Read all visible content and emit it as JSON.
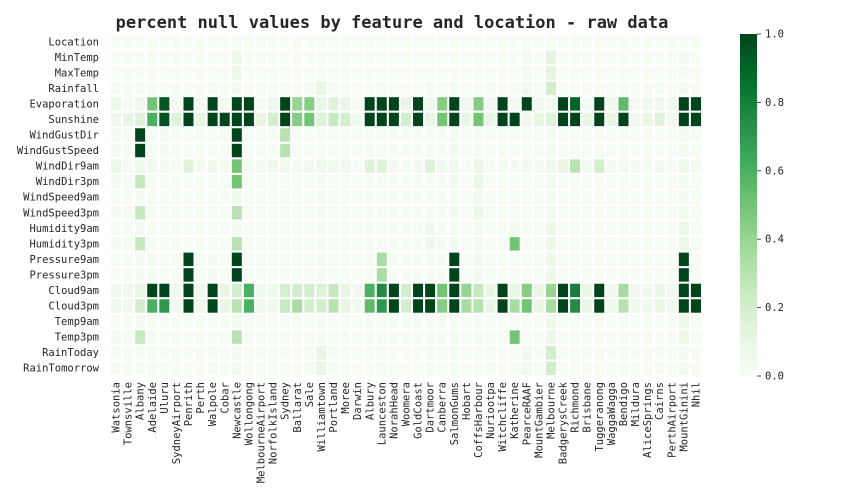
{
  "chart_data": {
    "type": "heatmap",
    "title": "percent null values by feature and location - raw data",
    "xlabel": "",
    "ylabel": "",
    "colormap": "Greens",
    "value_range": [
      0,
      1
    ],
    "colorbar_ticks": [
      "0.0",
      "0.2",
      "0.4",
      "0.6",
      "0.8",
      "1.0"
    ],
    "rows": [
      "Location",
      "MinTemp",
      "MaxTemp",
      "Rainfall",
      "Evaporation",
      "Sunshine",
      "WindGustDir",
      "WindGustSpeed",
      "WindDir9am",
      "WindDir3pm",
      "WindSpeed9am",
      "WindSpeed3pm",
      "Humidity9am",
      "Humidity3pm",
      "Pressure9am",
      "Pressure3pm",
      "Cloud9am",
      "Cloud3pm",
      "Temp9am",
      "Temp3pm",
      "RainToday",
      "RainTomorrow"
    ],
    "columns": [
      "Watsonia",
      "Townsville",
      "Albany",
      "Adelaide",
      "Uluru",
      "SydneyAirport",
      "Penrith",
      "Perth",
      "Walpole",
      "Cobar",
      "Newcastle",
      "Wollongong",
      "MelbourneAirport",
      "NorfolkIsland",
      "Sydney",
      "Ballarat",
      "Sale",
      "Williamtown",
      "Portland",
      "Moree",
      "Darwin",
      "Albury",
      "Launceston",
      "NorahHead",
      "Woomera",
      "GoldCoast",
      "Dartmoor",
      "Canberra",
      "SalmonGums",
      "Hobart",
      "CoffsHarbour",
      "Nuriootpa",
      "Witchcliffe",
      "Katherine",
      "PearceRAAF",
      "MountGambier",
      "Melbourne",
      "BadgerysCreek",
      "Richmond",
      "Brisbane",
      "Tuggeranong",
      "WaggaWagga",
      "Bendigo",
      "Mildura",
      "AliceSprings",
      "Cairns",
      "PerthAirport",
      "MountGinini",
      "Nhil"
    ],
    "values": [
      [
        0,
        0,
        0,
        0,
        0,
        0,
        0,
        0,
        0,
        0,
        0,
        0,
        0,
        0,
        0,
        0,
        0,
        0,
        0,
        0,
        0,
        0,
        0,
        0,
        0,
        0,
        0,
        0,
        0,
        0,
        0,
        0,
        0,
        0,
        0,
        0,
        0,
        0,
        0,
        0,
        0,
        0,
        0,
        0,
        0,
        0,
        0,
        0,
        0
      ],
      [
        0,
        0,
        0.01,
        0.01,
        0,
        0,
        0,
        0,
        0,
        0,
        0.07,
        0,
        0,
        0,
        0,
        0,
        0,
        0,
        0,
        0,
        0,
        0,
        0,
        0,
        0,
        0,
        0,
        0,
        0,
        0,
        0,
        0,
        0,
        0,
        0.03,
        0,
        0.12,
        0,
        0,
        0,
        0,
        0,
        0,
        0,
        0,
        0,
        0,
        0.02,
        0
      ],
      [
        0,
        0,
        0.01,
        0.01,
        0,
        0,
        0,
        0,
        0,
        0,
        0.07,
        0,
        0,
        0,
        0,
        0,
        0,
        0,
        0,
        0,
        0,
        0,
        0,
        0,
        0,
        0,
        0,
        0,
        0,
        0,
        0,
        0,
        0,
        0,
        0.03,
        0,
        0.12,
        0,
        0,
        0,
        0,
        0,
        0,
        0,
        0,
        0,
        0,
        0.02,
        0
      ],
      [
        0.02,
        0.01,
        0.02,
        0.02,
        0.01,
        0.01,
        0.01,
        0.01,
        0.02,
        0.01,
        0.03,
        0.01,
        0.01,
        0.01,
        0.01,
        0.01,
        0.02,
        0.1,
        0.02,
        0.01,
        0.01,
        0.01,
        0.02,
        0.01,
        0.01,
        0.01,
        0.02,
        0.01,
        0.02,
        0.01,
        0.01,
        0.02,
        0.01,
        0.01,
        0.05,
        0.01,
        0.2,
        0.01,
        0.01,
        0.01,
        0.01,
        0.01,
        0.02,
        0.01,
        0.01,
        0.02,
        0.01,
        0.03,
        0.01
      ],
      [
        0.06,
        0.02,
        0.05,
        0.5,
        0.95,
        0.02,
        1.0,
        0.02,
        1.0,
        0.02,
        1.0,
        1.0,
        0.02,
        0.06,
        1.0,
        0.4,
        0.45,
        0.1,
        0.15,
        0.1,
        0.02,
        1.0,
        1.0,
        1.0,
        0.1,
        1.0,
        0.05,
        0.45,
        1.0,
        0.05,
        0.45,
        0.05,
        1.0,
        0.02,
        1.0,
        0.05,
        0.05,
        1.0,
        0.9,
        0.02,
        1.0,
        0.05,
        0.55,
        0.02,
        0.05,
        0.05,
        0.05,
        1.0,
        1.0
      ],
      [
        0.06,
        0.1,
        0.15,
        0.6,
        0.95,
        0.15,
        1.0,
        0.1,
        1.0,
        1.0,
        1.0,
        1.0,
        0.1,
        0.2,
        1.0,
        0.45,
        0.5,
        0.15,
        0.25,
        0.2,
        0.05,
        1.0,
        1.0,
        1.0,
        0.2,
        1.0,
        0.1,
        0.5,
        1.0,
        0.1,
        0.5,
        0.1,
        1.0,
        1.0,
        0.05,
        0.1,
        0.15,
        1.0,
        1.0,
        0.1,
        1.0,
        0.1,
        1.0,
        0.05,
        0.1,
        0.15,
        0.05,
        1.0,
        1.0
      ],
      [
        0.02,
        0.01,
        1.0,
        0.01,
        0.02,
        0.01,
        0.01,
        0.01,
        0.01,
        0.01,
        1.0,
        0.01,
        0.01,
        0.01,
        0.3,
        0.01,
        0.01,
        0.01,
        0.01,
        0.01,
        0.01,
        0.01,
        0.01,
        0.01,
        0.01,
        0.02,
        0.01,
        0.02,
        0.03,
        0.01,
        0.02,
        0.01,
        0.01,
        0.01,
        0.01,
        0.01,
        0.03,
        0.01,
        0.01,
        0.01,
        0.01,
        0.01,
        0.01,
        0.01,
        0.01,
        0.01,
        0.01,
        0.03,
        0.01
      ],
      [
        0.02,
        0.01,
        1.0,
        0.01,
        0.02,
        0.01,
        0.01,
        0.01,
        0.01,
        0.01,
        1.0,
        0.01,
        0.01,
        0.01,
        0.3,
        0.01,
        0.01,
        0.01,
        0.01,
        0.01,
        0.01,
        0.01,
        0.01,
        0.01,
        0.01,
        0.02,
        0.01,
        0.02,
        0.03,
        0.01,
        0.02,
        0.01,
        0.01,
        0.01,
        0.01,
        0.01,
        0.03,
        0.01,
        0.01,
        0.01,
        0.01,
        0.01,
        0.01,
        0.01,
        0.01,
        0.01,
        0.01,
        0.03,
        0.01
      ],
      [
        0.08,
        0.02,
        0.05,
        0.04,
        0.03,
        0.02,
        0.15,
        0.03,
        0.05,
        0.03,
        0.5,
        0.03,
        0.02,
        0.05,
        0.04,
        0.03,
        0.04,
        0.05,
        0.04,
        0.05,
        0.02,
        0.15,
        0.15,
        0.03,
        0.02,
        0.03,
        0.15,
        0.05,
        0.05,
        0.02,
        0.08,
        0.02,
        0.03,
        0.02,
        0.04,
        0.02,
        0.05,
        0.1,
        0.3,
        0.04,
        0.2,
        0.02,
        0.04,
        0.02,
        0.02,
        0.04,
        0.02,
        0.06,
        0.03
      ],
      [
        0.02,
        0.01,
        0.25,
        0.01,
        0.01,
        0.01,
        0.01,
        0.01,
        0.01,
        0.01,
        0.5,
        0.01,
        0.01,
        0.01,
        0.01,
        0.01,
        0.01,
        0.02,
        0.01,
        0.01,
        0.01,
        0.02,
        0.02,
        0.01,
        0.01,
        0.02,
        0.01,
        0.02,
        0.03,
        0.01,
        0.08,
        0.01,
        0.01,
        0.01,
        0.01,
        0.01,
        0.03,
        0.01,
        0.01,
        0.01,
        0.01,
        0.01,
        0.01,
        0.01,
        0.01,
        0.01,
        0.01,
        0.04,
        0.01
      ],
      [
        0.01,
        0.01,
        0.02,
        0.01,
        0.01,
        0.01,
        0.01,
        0.01,
        0.01,
        0.01,
        0.05,
        0.01,
        0.01,
        0.01,
        0.01,
        0.01,
        0.01,
        0.02,
        0.01,
        0.01,
        0.01,
        0.01,
        0.01,
        0.01,
        0.01,
        0.01,
        0.01,
        0.02,
        0.02,
        0.01,
        0.05,
        0.01,
        0.01,
        0.01,
        0.01,
        0.01,
        0.02,
        0.01,
        0.01,
        0.01,
        0.01,
        0.01,
        0.01,
        0.01,
        0.01,
        0.01,
        0.01,
        0.03,
        0.01
      ],
      [
        0.02,
        0.01,
        0.25,
        0.01,
        0.01,
        0.01,
        0.01,
        0.01,
        0.01,
        0.01,
        0.3,
        0.01,
        0.01,
        0.01,
        0.01,
        0.01,
        0.01,
        0.02,
        0.01,
        0.01,
        0.01,
        0.02,
        0.02,
        0.01,
        0.01,
        0.02,
        0.01,
        0.02,
        0.03,
        0.01,
        0.08,
        0.01,
        0.01,
        0.01,
        0.01,
        0.01,
        0.03,
        0.01,
        0.01,
        0.01,
        0.01,
        0.01,
        0.01,
        0.01,
        0.01,
        0.01,
        0.01,
        0.04,
        0.01
      ],
      [
        0.01,
        0.01,
        0.02,
        0.01,
        0.01,
        0.01,
        0.01,
        0.01,
        0.01,
        0.01,
        0.03,
        0.01,
        0.01,
        0.01,
        0.01,
        0.01,
        0.01,
        0.02,
        0.01,
        0.01,
        0.01,
        0.01,
        0.01,
        0.01,
        0.01,
        0.01,
        0.05,
        0.02,
        0.02,
        0.01,
        0.03,
        0.01,
        0.01,
        0.04,
        0.01,
        0.01,
        0.07,
        0.01,
        0.01,
        0.01,
        0.01,
        0.01,
        0.01,
        0.01,
        0.01,
        0.01,
        0.01,
        0.08,
        0.01
      ],
      [
        0.02,
        0.01,
        0.25,
        0.01,
        0.01,
        0.01,
        0.01,
        0.01,
        0.01,
        0.01,
        0.3,
        0.01,
        0.01,
        0.01,
        0.01,
        0.01,
        0.01,
        0.02,
        0.01,
        0.01,
        0.01,
        0.02,
        0.02,
        0.01,
        0.01,
        0.02,
        0.06,
        0.02,
        0.03,
        0.01,
        0.03,
        0.01,
        0.01,
        0.5,
        0.01,
        0.01,
        0.07,
        0.01,
        0.01,
        0.01,
        0.01,
        0.01,
        0.01,
        0.01,
        0.01,
        0.01,
        0.01,
        0.08,
        0.01
      ],
      [
        0.01,
        0.01,
        0.02,
        0.02,
        0.01,
        0.01,
        1.0,
        0.01,
        0.02,
        0.01,
        1.0,
        0.01,
        0.01,
        0.01,
        0.01,
        0.01,
        0.01,
        0.02,
        0.01,
        0.01,
        0.01,
        0.02,
        0.35,
        0.01,
        0.01,
        0.01,
        0.02,
        0.02,
        1.0,
        0.01,
        0.04,
        0.01,
        0.01,
        0.01,
        0.01,
        0.01,
        0.07,
        0.01,
        0.01,
        0.01,
        0.01,
        0.01,
        0.01,
        0.01,
        0.01,
        0.01,
        0.01,
        1.0,
        0.01
      ],
      [
        0.01,
        0.01,
        0.02,
        0.02,
        0.01,
        0.01,
        1.0,
        0.01,
        0.02,
        0.01,
        1.0,
        0.01,
        0.01,
        0.01,
        0.01,
        0.01,
        0.01,
        0.02,
        0.01,
        0.01,
        0.01,
        0.02,
        0.35,
        0.01,
        0.01,
        0.01,
        0.02,
        0.02,
        1.0,
        0.01,
        0.04,
        0.01,
        0.01,
        0.01,
        0.01,
        0.01,
        0.07,
        0.01,
        0.01,
        0.01,
        0.01,
        0.01,
        0.01,
        0.01,
        0.01,
        0.01,
        0.01,
        1.0,
        0.01
      ],
      [
        0.05,
        0.05,
        0.1,
        1.0,
        1.0,
        0.05,
        1.0,
        0.05,
        1.0,
        0.1,
        0.2,
        0.6,
        0.05,
        0.05,
        0.2,
        0.2,
        0.2,
        0.15,
        0.25,
        0.1,
        0.05,
        0.6,
        0.75,
        1.0,
        0.2,
        1.0,
        1.0,
        0.5,
        1.0,
        0.4,
        0.25,
        0.1,
        1.0,
        0.1,
        0.45,
        0.1,
        0.4,
        1.0,
        0.8,
        0.1,
        1.0,
        0.05,
        0.35,
        0.05,
        0.05,
        0.1,
        0.05,
        1.0,
        1.0
      ],
      [
        0.05,
        0.05,
        0.2,
        0.6,
        0.7,
        0.05,
        1.0,
        0.05,
        1.0,
        0.1,
        0.3,
        0.6,
        0.05,
        0.05,
        0.25,
        0.35,
        0.2,
        0.2,
        0.3,
        0.1,
        0.05,
        0.55,
        0.7,
        1.0,
        0.2,
        1.0,
        1.0,
        0.45,
        1.0,
        0.35,
        0.3,
        0.1,
        1.0,
        0.35,
        0.5,
        0.1,
        0.35,
        1.0,
        0.75,
        0.1,
        1.0,
        0.05,
        0.3,
        0.05,
        0.05,
        0.1,
        0.05,
        1.0,
        1.0
      ],
      [
        0.01,
        0.01,
        0.02,
        0.01,
        0.01,
        0.01,
        0.01,
        0.01,
        0.01,
        0.01,
        0.04,
        0.01,
        0.01,
        0.01,
        0.01,
        0.01,
        0.01,
        0.02,
        0.01,
        0.01,
        0.01,
        0.01,
        0.01,
        0.01,
        0.01,
        0.01,
        0.01,
        0.02,
        0.02,
        0.01,
        0.02,
        0.01,
        0.01,
        0.01,
        0.01,
        0.01,
        0.06,
        0.01,
        0.01,
        0.01,
        0.01,
        0.01,
        0.01,
        0.01,
        0.01,
        0.01,
        0.01,
        0.08,
        0.01
      ],
      [
        0.02,
        0.01,
        0.25,
        0.01,
        0.01,
        0.01,
        0.01,
        0.01,
        0.01,
        0.01,
        0.3,
        0.01,
        0.01,
        0.01,
        0.01,
        0.01,
        0.01,
        0.02,
        0.01,
        0.01,
        0.01,
        0.02,
        0.02,
        0.01,
        0.01,
        0.02,
        0.02,
        0.02,
        0.03,
        0.01,
        0.03,
        0.01,
        0.01,
        0.5,
        0.01,
        0.01,
        0.07,
        0.01,
        0.01,
        0.01,
        0.01,
        0.01,
        0.01,
        0.01,
        0.01,
        0.01,
        0.01,
        0.08,
        0.01
      ],
      [
        0.02,
        0.01,
        0.02,
        0.02,
        0.01,
        0.01,
        0.01,
        0.01,
        0.02,
        0.01,
        0.03,
        0.01,
        0.01,
        0.01,
        0.01,
        0.01,
        0.02,
        0.1,
        0.02,
        0.01,
        0.01,
        0.01,
        0.02,
        0.01,
        0.01,
        0.01,
        0.02,
        0.01,
        0.02,
        0.01,
        0.01,
        0.02,
        0.01,
        0.01,
        0.05,
        0.01,
        0.2,
        0.01,
        0.01,
        0.01,
        0.01,
        0.01,
        0.02,
        0.01,
        0.01,
        0.02,
        0.01,
        0.03,
        0.01
      ],
      [
        0.02,
        0.01,
        0.02,
        0.02,
        0.01,
        0.01,
        0.01,
        0.01,
        0.02,
        0.01,
        0.03,
        0.01,
        0.01,
        0.01,
        0.01,
        0.01,
        0.02,
        0.1,
        0.02,
        0.01,
        0.01,
        0.01,
        0.02,
        0.01,
        0.01,
        0.01,
        0.02,
        0.01,
        0.02,
        0.01,
        0.01,
        0.02,
        0.01,
        0.01,
        0.05,
        0.01,
        0.2,
        0.01,
        0.01,
        0.01,
        0.01,
        0.01,
        0.02,
        0.01,
        0.01,
        0.02,
        0.01,
        0.03,
        0.01
      ]
    ]
  }
}
